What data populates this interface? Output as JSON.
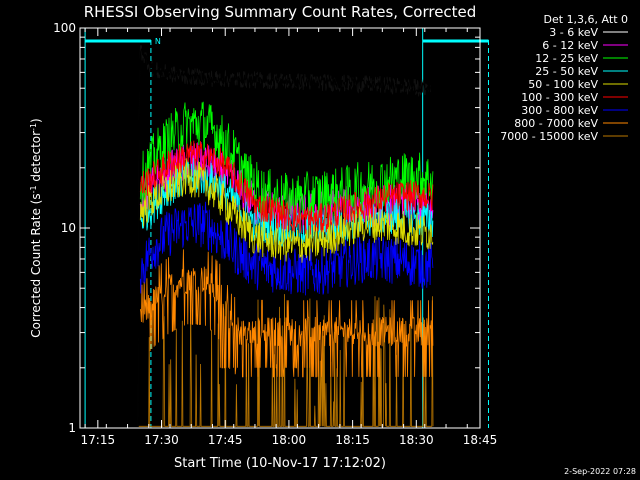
{
  "chart_data": {
    "type": "line",
    "title": "RHESSI Observing Summary Count Rates, Corrected",
    "xlabel": "Start Time (10-Nov-17 17:12:02)",
    "ylabel_main": "Corrected Count Rate (s",
    "ylabel_sup1": "-1",
    "ylabel_mid": " detector",
    "ylabel_sup2": "-1",
    "ylabel_end": ")",
    "y_scale": "log",
    "ylim": [
      1,
      100
    ],
    "xlim_minutes": [
      -1.2,
      93
    ],
    "x_ticks": [
      {
        "label": "17:15",
        "t": 3
      },
      {
        "label": "17:30",
        "t": 18
      },
      {
        "label": "17:45",
        "t": 33
      },
      {
        "label": "18:00",
        "t": 48
      },
      {
        "label": "18:15",
        "t": 63
      },
      {
        "label": "18:30",
        "t": 78
      },
      {
        "label": "18:45",
        "t": 93
      }
    ],
    "y_ticks": [
      {
        "label": "1",
        "v": 1
      },
      {
        "label": "10",
        "v": 10
      },
      {
        "label": "100",
        "v": 100
      }
    ],
    "legend_header": "Det 1,3,6, Att 0",
    "legend_position": "top-right outside",
    "night_marker": "N",
    "attenuator_or_night_bars": [
      [
        0,
        15.5
      ],
      [
        79.5,
        95
      ]
    ],
    "vertical_lines_solid": [
      0,
      79.5
    ],
    "vertical_lines_dashed": [
      15.5,
      95
    ],
    "data_range_minutes": [
      12.5,
      82
    ],
    "series": [
      {
        "name": "3 - 6 keV",
        "color": "#000000",
        "t": [
          12.5,
          13,
          14,
          16,
          18,
          22,
          30,
          40,
          50,
          60,
          70,
          75,
          80,
          81.5
        ],
        "v": [
          1,
          78,
          72,
          62,
          60,
          58,
          56,
          55,
          54,
          53,
          52,
          51,
          50,
          50
        ]
      },
      {
        "name": "6 - 12 keV",
        "color": "#ff00ff",
        "t": [
          13,
          16,
          20,
          24,
          28,
          32,
          36,
          40,
          45,
          50,
          55,
          60,
          65,
          70,
          75,
          80,
          82
        ],
        "v": [
          14,
          16,
          19,
          21,
          21,
          19,
          16,
          13,
          12,
          11.5,
          12,
          12.5,
          13,
          13,
          13,
          13,
          12
        ]
      },
      {
        "name": "12 - 25 keV",
        "color": "#00ff00",
        "t": [
          13,
          16,
          20,
          24,
          28,
          30,
          34,
          38,
          42,
          46,
          50,
          55,
          60,
          65,
          70,
          75,
          80,
          82
        ],
        "v": [
          17,
          22,
          28,
          33,
          33,
          31,
          25,
          18,
          15,
          14,
          14,
          14.5,
          15,
          16,
          17,
          18,
          18,
          17
        ]
      },
      {
        "name": "25 - 50 keV",
        "color": "#00ffff",
        "t": [
          13,
          16,
          20,
          24,
          28,
          32,
          36,
          40,
          45,
          50,
          55,
          60,
          65,
          70,
          75,
          80,
          82
        ],
        "v": [
          11,
          13,
          16,
          18,
          18,
          16,
          13,
          10.5,
          10,
          10,
          10,
          10.5,
          11,
          11.5,
          11.5,
          11,
          11
        ]
      },
      {
        "name": "50 - 100 keV",
        "color": "#dddd00",
        "t": [
          13,
          16,
          20,
          24,
          28,
          32,
          36,
          40,
          45,
          50,
          55,
          60,
          65,
          70,
          75,
          80,
          82
        ],
        "v": [
          12,
          14,
          16,
          18,
          17,
          14,
          11,
          9,
          8.5,
          8.2,
          8.5,
          9.5,
          10.5,
          10.5,
          10,
          9.5,
          9.5
        ]
      },
      {
        "name": "100 - 300 keV",
        "color": "#ff0000",
        "t": [
          13,
          16,
          20,
          24,
          28,
          32,
          36,
          40,
          45,
          50,
          55,
          60,
          65,
          70,
          75,
          80,
          82
        ],
        "v": [
          16,
          18,
          21,
          23,
          23,
          21,
          17,
          13,
          12,
          11,
          11,
          12,
          13,
          14,
          14.5,
          14.5,
          14
        ]
      },
      {
        "name": "300 - 800 keV",
        "color": "#0000ff",
        "t": [
          13,
          16,
          20,
          24,
          28,
          32,
          36,
          40,
          45,
          50,
          55,
          60,
          65,
          70,
          75,
          80,
          82
        ],
        "v": [
          6,
          8,
          9.5,
          10.5,
          10.5,
          9,
          7.5,
          6.5,
          6.2,
          6,
          6,
          6.5,
          7,
          7,
          6.8,
          6.5,
          6.5
        ]
      },
      {
        "name": "800 - 7000 keV",
        "color": "#ff8800",
        "t": [
          13,
          16,
          20,
          24,
          28,
          32,
          34,
          36,
          40,
          45,
          50,
          55,
          60,
          65,
          70,
          75,
          80,
          82
        ],
        "v": [
          3.5,
          4.2,
          5,
          5.5,
          5.5,
          4.5,
          3.3,
          3,
          3,
          3,
          3,
          3,
          3,
          3,
          3,
          3,
          3,
          3
        ]
      },
      {
        "name": "7000 - 15000 keV",
        "color": "#bb7700",
        "t": [
          12.5,
          13,
          20,
          30,
          40,
          50,
          60,
          70,
          80,
          82
        ],
        "v": [
          1,
          1,
          1,
          1,
          1,
          1,
          1,
          1,
          1,
          1
        ]
      }
    ]
  },
  "footer": {
    "timestamp": "2-Sep-2022 07:28"
  }
}
